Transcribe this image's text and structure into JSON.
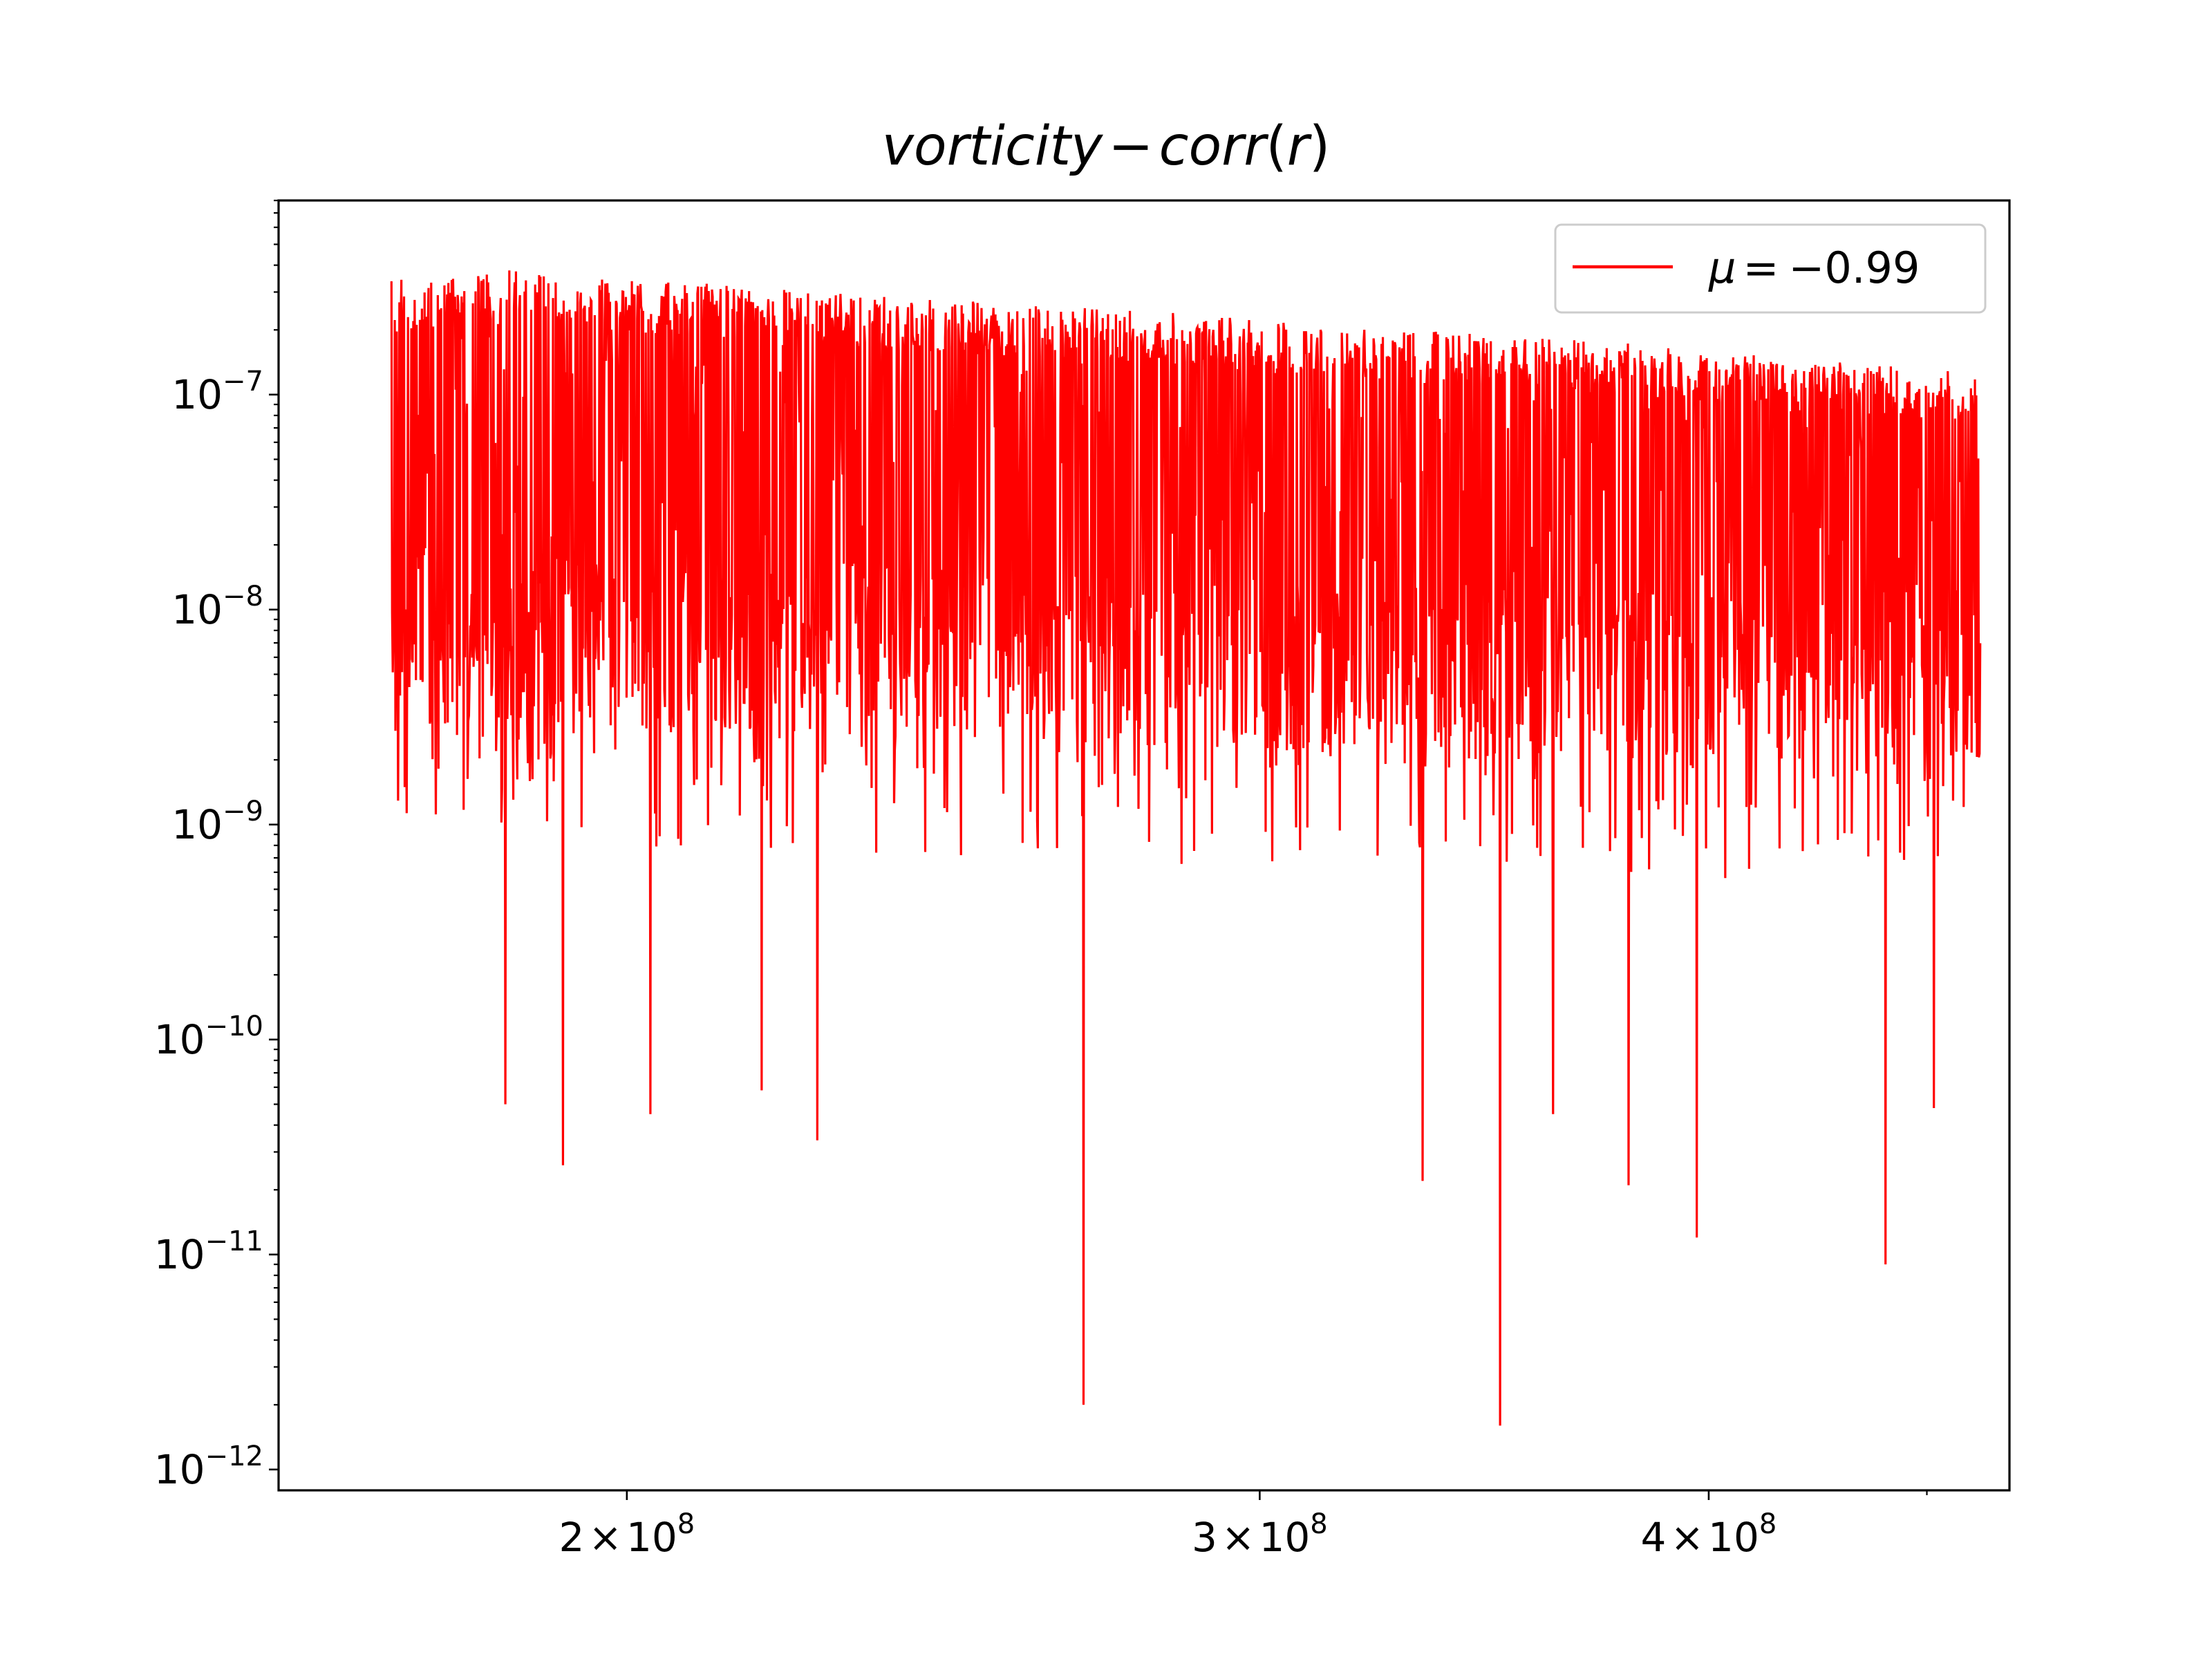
{
  "chart_data": {
    "type": "line",
    "title": "vorticity - corr(r)",
    "xlabel": "",
    "ylabel": "",
    "xscale": "log",
    "yscale": "log",
    "xlim": [
      160000000,
      485000000
    ],
    "ylim": [
      8e-13,
      8e-07
    ],
    "grid": false,
    "legend_position": "upper right",
    "x_ticks": [
      {
        "value": 200000000,
        "mantissa": "2",
        "exponent": "8"
      },
      {
        "value": 300000000,
        "mantissa": "3",
        "exponent": "8"
      },
      {
        "value": 400000000,
        "mantissa": "4",
        "exponent": "8"
      }
    ],
    "y_ticks": [
      {
        "value": 1e-12,
        "exponent": "-12"
      },
      {
        "value": 1e-11,
        "exponent": "-11"
      },
      {
        "value": 1e-10,
        "exponent": "-10"
      },
      {
        "value": 1e-09,
        "exponent": "-9"
      },
      {
        "value": 1e-08,
        "exponent": "-8"
      },
      {
        "value": 1e-07,
        "exponent": "-7"
      }
    ],
    "series": [
      {
        "name": "μ = -0.99",
        "color": "#ff0000",
        "x_range": [
          172000000,
          476000000
        ],
        "upper_envelope": [
          [
            172000000,
            3.4e-07
          ],
          [
            185000000,
            3.8e-07
          ],
          [
            200000000,
            3.5e-07
          ],
          [
            220000000,
            3.1e-07
          ],
          [
            250000000,
            2.7e-07
          ],
          [
            280000000,
            2.5e-07
          ],
          [
            300000000,
            2.2e-07
          ],
          [
            330000000,
            2e-07
          ],
          [
            360000000,
            1.9e-07
          ],
          [
            400000000,
            1.6e-07
          ],
          [
            440000000,
            1.4e-07
          ],
          [
            476000000,
            1.3e-07
          ]
        ],
        "typical_lower": [
          [
            172000000,
            3e-09
          ],
          [
            250000000,
            2.5e-09
          ],
          [
            350000000,
            2e-09
          ],
          [
            476000000,
            2e-09
          ]
        ],
        "deep_minima": [
          [
            185000000,
            5e-11
          ],
          [
            192000000,
            2.6e-11
          ],
          [
            203000000,
            4.5e-11
          ],
          [
            218000000,
            5.8e-11
          ],
          [
            226000000,
            3.4e-11
          ],
          [
            268000000,
            2e-12
          ],
          [
            333000000,
            2.2e-11
          ],
          [
            350000000,
            1.6e-12
          ],
          [
            362000000,
            4.5e-11
          ],
          [
            380000000,
            2.1e-11
          ],
          [
            397000000,
            1.2e-11
          ],
          [
            448000000,
            9e-12
          ],
          [
            462000000,
            4.8e-11
          ]
        ]
      }
    ]
  }
}
